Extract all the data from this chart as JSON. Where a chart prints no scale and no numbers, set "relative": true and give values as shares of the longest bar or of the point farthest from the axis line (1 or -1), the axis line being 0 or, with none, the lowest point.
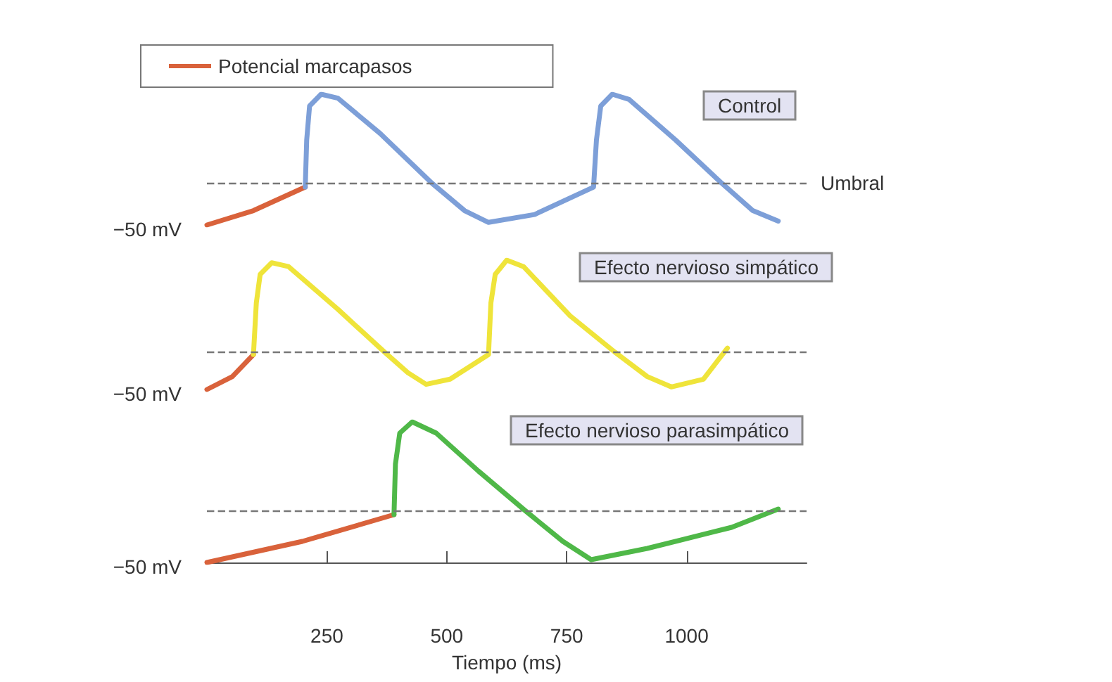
{
  "chart_data": [
    {
      "type": "line",
      "title": "Control",
      "relative": true,
      "xlim": [
        0,
        1250
      ],
      "tick_labels": false,
      "marker": "none",
      "line_style": "solid",
      "legend": "top left",
      "annotations": [
        "−50 mV"
      ],
      "ref_lines": [
        {
          "axis": "y",
          "value": 0.32,
          "label": "Umbral",
          "color": "#777777",
          "line_style": "dashed"
        }
      ],
      "series": [
        {
          "name": "Potencial marcapasos",
          "color": "#d9623b",
          "x": [
            0,
            97,
            205
          ],
          "values": [
            0,
            0.11,
            0.29
          ]
        },
        {
          "color": "#7d9fd8",
          "x": [
            205,
            208,
            214,
            238,
            273,
            361,
            469,
            537,
            587,
            683,
            806,
            812,
            821,
            845,
            880,
            977,
            1073,
            1138,
            1191
          ],
          "values": [
            0.29,
            0.65,
            0.91,
            1,
            0.97,
            0.7,
            0.32,
            0.11,
            0.02,
            0.08,
            0.29,
            0.65,
            0.91,
            1,
            0.96,
            0.65,
            0.32,
            0.11,
            0.03
          ]
        }
      ]
    },
    {
      "type": "line",
      "title": "Efecto nervioso simpático",
      "relative": true,
      "xlim": [
        0,
        1250
      ],
      "tick_labels": false,
      "marker": "none",
      "line_style": "solid",
      "annotations": [
        "−50 mV"
      ],
      "ref_lines": [
        {
          "axis": "y",
          "value": 0.29,
          "color": "#777777",
          "line_style": "dashed"
        }
      ],
      "series": [
        {
          "color": "#d9623b",
          "x": [
            0,
            53,
            97
          ],
          "values": [
            0,
            0.1,
            0.27
          ]
        },
        {
          "color": "#efe43a",
          "x": [
            97,
            103,
            111,
            135,
            170,
            273,
            370,
            419,
            457,
            507,
            587,
            592,
            601,
            625,
            660,
            757,
            850,
            918,
            968,
            1035,
            1085
          ],
          "values": [
            0.27,
            0.67,
            0.89,
            0.98,
            0.95,
            0.62,
            0.29,
            0.13,
            0.04,
            0.08,
            0.27,
            0.67,
            0.89,
            1,
            0.95,
            0.57,
            0.29,
            0.1,
            0.02,
            0.08,
            0.32
          ]
        }
      ]
    },
    {
      "type": "line",
      "title": "Efecto nervioso parasimpático",
      "relative": true,
      "xlim": [
        0,
        1250
      ],
      "xticks": [
        250,
        500,
        750,
        1000
      ],
      "xlabel": "Tiempo (ms)",
      "tick_labels": "x",
      "marker": "none",
      "line_style": "solid",
      "annotations": [
        "−50 mV"
      ],
      "ref_lines": [
        {
          "axis": "y",
          "value": 0.37,
          "color": "#777777",
          "line_style": "dashed"
        }
      ],
      "series": [
        {
          "color": "#d9623b",
          "x": [
            0,
            199,
            390
          ],
          "values": [
            0,
            0.15,
            0.34
          ]
        },
        {
          "color": "#4fb848",
          "x": [
            390,
            393,
            402,
            428,
            478,
            566,
            663,
            742,
            801,
            918,
            1094,
            1191
          ],
          "values": [
            0.34,
            0.7,
            0.92,
            1,
            0.92,
            0.65,
            0.37,
            0.15,
            0.02,
            0.1,
            0.25,
            0.38
          ]
        }
      ]
    }
  ]
}
